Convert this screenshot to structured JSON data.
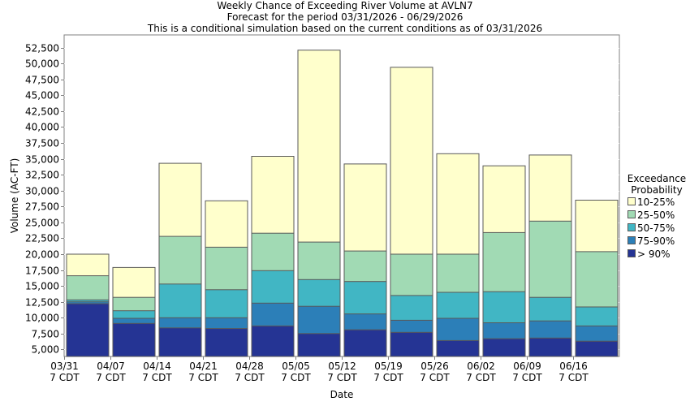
{
  "chart_data": {
    "type": "bar",
    "stacked": true,
    "title": [
      "Weekly Chance of Exceeding River Volume at AVLN7",
      "Forecast for the period 03/31/2026 - 06/29/2026",
      "This is a conditional simulation based on the current conditions as of 03/31/2026"
    ],
    "xlabel": "Date",
    "ylabel": "Volume (AC-FT)",
    "ylim": [
      3900,
      54500
    ],
    "yticks": [
      5000,
      7500,
      10000,
      12500,
      15000,
      17500,
      20000,
      22500,
      25000,
      27500,
      30000,
      32500,
      35000,
      37500,
      40000,
      42500,
      45000,
      47500,
      50000,
      52500
    ],
    "ytick_labels": [
      "5,000",
      "7,500",
      "10,000",
      "12,500",
      "15,000",
      "17,500",
      "20,000",
      "22,500",
      "25,000",
      "27,500",
      "30,000",
      "32,500",
      "35,000",
      "37,500",
      "40,000",
      "42,500",
      "45,000",
      "47,500",
      "50,000",
      "52,500"
    ],
    "xticks": [
      {
        "line1": "03/31",
        "line2": "7 CDT"
      },
      {
        "line1": "04/07",
        "line2": "7 CDT"
      },
      {
        "line1": "04/14",
        "line2": "7 CDT"
      },
      {
        "line1": "04/21",
        "line2": "7 CDT"
      },
      {
        "line1": "04/28",
        "line2": "7 CDT"
      },
      {
        "line1": "05/05",
        "line2": "7 CDT"
      },
      {
        "line1": "05/12",
        "line2": "7 CDT"
      },
      {
        "line1": "05/19",
        "line2": "7 CDT"
      },
      {
        "line1": "05/26",
        "line2": "7 CDT"
      },
      {
        "line1": "06/02",
        "line2": "7 CDT"
      },
      {
        "line1": "06/09",
        "line2": "7 CDT"
      },
      {
        "line1": "06/16",
        "line2": "7 CDT"
      }
    ],
    "weeks": 12,
    "legend_title": [
      "Exceedance",
      "Probability"
    ],
    "legend_position": "right",
    "series": [
      {
        "name": "10-25%",
        "color": "#ffffcc",
        "tops": [
          20000,
          17900,
          34300,
          28400,
          35400,
          52100,
          34200,
          49400,
          35800,
          33900,
          35600,
          28500
        ]
      },
      {
        "name": "25-50%",
        "color": "#a1dab4",
        "tops": [
          16600,
          13200,
          22800,
          21100,
          23300,
          21900,
          20500,
          20000,
          20000,
          23400,
          25200,
          20400
        ]
      },
      {
        "name": "50-75%",
        "color": "#41b6c4",
        "tops": [
          12800,
          11100,
          15300,
          14400,
          17400,
          16000,
          15700,
          13500,
          14000,
          14100,
          13200,
          11700
        ]
      },
      {
        "name": "75-90%",
        "color": "#2c7fb8",
        "tops": [
          12500,
          9900,
          10000,
          10000,
          12300,
          11800,
          10600,
          9600,
          9900,
          9200,
          9500,
          8700
        ]
      },
      {
        "name": "> 90%",
        "color": "#253494",
        "tops": [
          12200,
          9100,
          8400,
          8300,
          8700,
          7500,
          8100,
          7700,
          6400,
          6700,
          6800,
          6300
        ]
      }
    ]
  }
}
